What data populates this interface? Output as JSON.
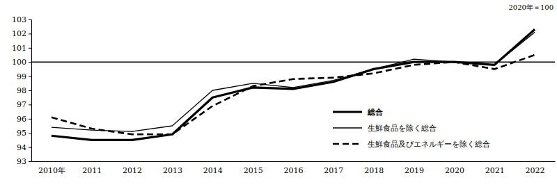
{
  "chart_data": {
    "type": "line",
    "subtitle": "2020年＝100",
    "categories": [
      "2010年",
      "2011",
      "2012",
      "2013",
      "2014",
      "2015",
      "2016",
      "2017",
      "2018",
      "2019",
      "2020",
      "2021",
      "2022"
    ],
    "series": [
      {
        "name": "総合",
        "color": "#000000",
        "line_style": "thick",
        "values": [
          94.8,
          94.5,
          94.5,
          94.9,
          97.5,
          98.2,
          98.1,
          98.6,
          99.5,
          100.0,
          100.0,
          99.8,
          102.3
        ]
      },
      {
        "name": "生鮮食品を除く総合",
        "color": "#000000",
        "line_style": "solid",
        "values": [
          95.4,
          95.2,
          95.1,
          95.5,
          98.0,
          98.5,
          98.2,
          98.7,
          99.5,
          100.2,
          100.0,
          99.8,
          102.1
        ]
      },
      {
        "name": "生鮮食品及びエネルギーを除く総合",
        "color": "#000000",
        "line_style": "dashed",
        "values": [
          96.1,
          95.3,
          94.9,
          94.9,
          96.9,
          98.3,
          98.8,
          98.9,
          99.2,
          99.8,
          100.0,
          99.5,
          100.5
        ]
      }
    ],
    "reference_line": 100,
    "ylim": [
      93,
      103
    ],
    "yticks": [
      93,
      94,
      95,
      96,
      97,
      98,
      99,
      100,
      101,
      102,
      103
    ],
    "grid": false,
    "legend": "lower right"
  }
}
